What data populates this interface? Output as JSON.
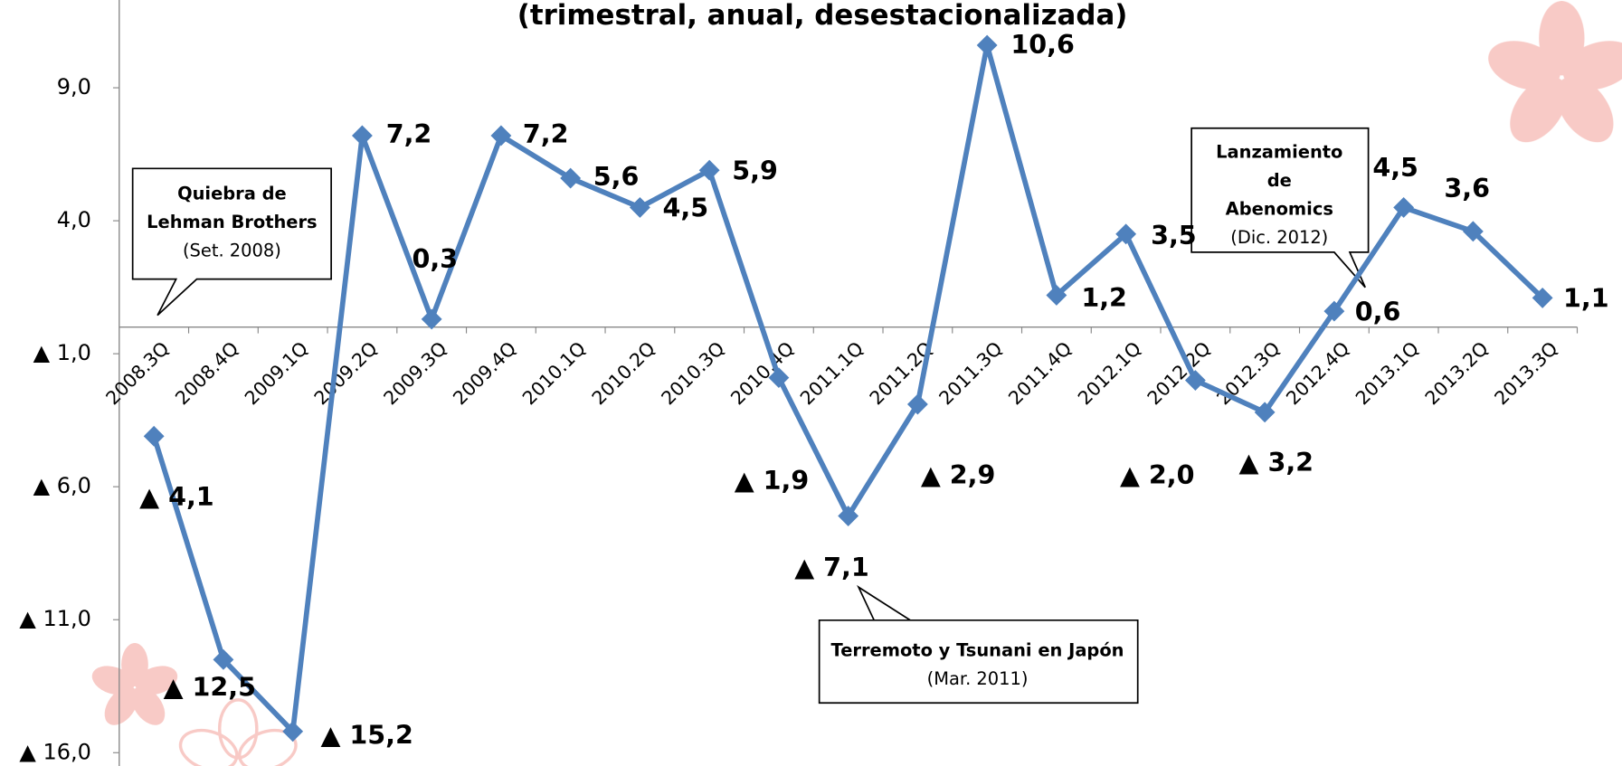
{
  "chart_data": {
    "type": "line",
    "title": "(trimestral, anual, desestacionalizada)",
    "categories": [
      "2008.3Q",
      "2008.4Q",
      "2009.1Q",
      "2009.2Q",
      "2009.3Q",
      "2009.4Q",
      "2010.1Q",
      "2010.2Q",
      "2010.3Q",
      "2010.4Q",
      "2011.1Q",
      "2011.2Q",
      "2011.3Q",
      "2011.4Q",
      "2012.1Q",
      "2012.2Q",
      "2012.3Q",
      "2012.4Q",
      "2013.1Q",
      "2013.2Q",
      "2013.3Q"
    ],
    "values": [
      -4.1,
      -12.5,
      -15.2,
      7.2,
      0.3,
      7.2,
      5.6,
      4.5,
      5.9,
      -1.9,
      -7.1,
      -2.9,
      10.6,
      1.2,
      3.5,
      -2.0,
      -3.2,
      0.6,
      4.5,
      3.6,
      1.1
    ],
    "value_labels": [
      "▲ 4,1",
      "▲ 12,5",
      "▲ 15,2",
      "7,2",
      "0,3",
      "7,2",
      "5,6",
      "4,5",
      "5,9",
      "▲ 1,9",
      "▲ 7,1",
      "▲ 2,9",
      "10,6",
      "1,2",
      "3,5",
      "▲ 2,0",
      "▲ 3,2",
      "0,6",
      "4,5",
      "3,6",
      "1,1"
    ],
    "color": "#4f81bd",
    "ylim": [
      -16.5,
      12.3
    ],
    "yticks": [
      {
        "value": 9,
        "label": "9,0"
      },
      {
        "value": 4,
        "label": "4,0"
      },
      {
        "value": -1,
        "label": "▲ 1,0"
      },
      {
        "value": -6,
        "label": "▲ 6,0"
      },
      {
        "value": -11,
        "label": "▲ 11,0"
      },
      {
        "value": -16,
        "label": "▲ 16,0"
      }
    ],
    "grid": false,
    "annotations": [
      {
        "lines": [
          "Quiebra de",
          "Lehman Brothers"
        ],
        "note": "(Set. 2008)"
      },
      {
        "lines": [
          "Terremoto y Tsunani en Japón"
        ],
        "note": "(Mar. 2011)"
      },
      {
        "lines": [
          "Lanzamiento",
          "de",
          "Abenomics"
        ],
        "note": "(Dic. 2012)"
      }
    ]
  }
}
